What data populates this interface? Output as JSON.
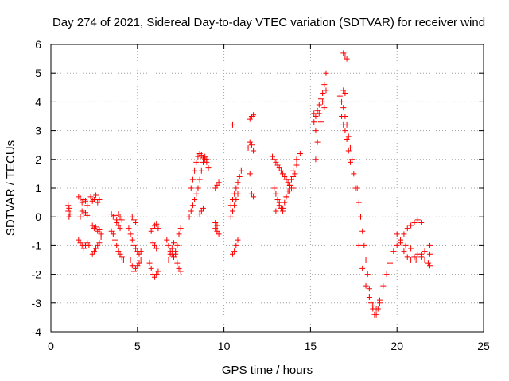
{
  "chart_data": {
    "type": "scatter",
    "title": "Day 274 of 2021, Sidereal Day-to-day VTEC variation (SDTVAR) for receiver wind",
    "xlabel": "GPS time / hours",
    "ylabel": "SDTVAR / TECUs",
    "xlim": [
      0,
      25
    ],
    "ylim": [
      -4,
      6
    ],
    "x_ticks": [
      0,
      5,
      10,
      15,
      20,
      25
    ],
    "y_ticks": [
      -4,
      -3,
      -2,
      -1,
      0,
      1,
      2,
      3,
      4,
      5,
      6
    ],
    "x_tick_labels": [
      "0",
      "5",
      "10",
      "15",
      "20",
      "25"
    ],
    "y_tick_labels": [
      "-4",
      "-3",
      "-2",
      "-1",
      "0",
      "1",
      "2",
      "3",
      "4",
      "5",
      "6"
    ],
    "grid": true,
    "marker": "plus",
    "marker_color": "#ff0000",
    "series": [
      {
        "name": "SDTVAR",
        "x": [
          1.0,
          1.0,
          1.05,
          1.05,
          1.1,
          1.6,
          1.7,
          1.8,
          1.9,
          2.0,
          2.1,
          1.6,
          1.7,
          1.8,
          1.9,
          2.0,
          2.1,
          2.2,
          1.7,
          1.8,
          1.9,
          2.0,
          2.1,
          2.3,
          2.4,
          2.5,
          2.6,
          2.7,
          2.8,
          2.4,
          2.5,
          2.6,
          2.7,
          2.8,
          2.9,
          2.4,
          2.5,
          2.6,
          2.7,
          2.8,
          2.9,
          3.5,
          3.6,
          3.7,
          3.8,
          3.9,
          4.0,
          4.1,
          3.5,
          3.6,
          3.7,
          3.8,
          3.9,
          4.0,
          4.1,
          4.2,
          3.8,
          3.9,
          4.0,
          4.5,
          4.6,
          4.7,
          4.8,
          4.9,
          5.0,
          5.1,
          5.2,
          4.6,
          4.7,
          4.8,
          4.9,
          5.0,
          5.1,
          5.2,
          4.7,
          4.8,
          4.9,
          5.8,
          5.9,
          6.0,
          6.1,
          6.2,
          5.7,
          5.8,
          5.9,
          6.0,
          6.1,
          6.2,
          5.9,
          6.0,
          6.1,
          6.7,
          6.8,
          6.9,
          7.0,
          7.1,
          7.2,
          7.3,
          7.4,
          7.5,
          6.8,
          6.9,
          7.0,
          7.1,
          7.2,
          7.3,
          7.4,
          7.5,
          8.0,
          8.1,
          8.2,
          8.3,
          8.4,
          8.5,
          8.6,
          8.7,
          8.8,
          8.9,
          9.0,
          8.1,
          8.2,
          8.3,
          8.4,
          8.5,
          8.6,
          8.7,
          8.8,
          8.9,
          9.0,
          9.1,
          8.6,
          8.7,
          8.8,
          9.5,
          9.6,
          9.7,
          9.5,
          9.6,
          9.7,
          9.5,
          9.6,
          10.4,
          10.5,
          10.6,
          10.7,
          10.8,
          10.9,
          11.0,
          10.4,
          10.5,
          10.6,
          10.7,
          10.8,
          10.5,
          10.6,
          10.7,
          10.8,
          10.5,
          11.4,
          11.5,
          11.6,
          11.7,
          11.5,
          11.6,
          11.7,
          11.5,
          11.6,
          11.7,
          12.8,
          12.9,
          13.0,
          13.1,
          13.2,
          13.3,
          13.4,
          13.5,
          13.6,
          13.7,
          13.8,
          13.9,
          14.0,
          14.1,
          14.2,
          12.9,
          13.0,
          13.1,
          13.2,
          13.3,
          13.4,
          13.5,
          13.6,
          13.7,
          13.8,
          13.9,
          14.0,
          13.0,
          13.2,
          13.4,
          13.6,
          13.8,
          14.0,
          14.2,
          14.4,
          15.2,
          15.3,
          15.4,
          15.5,
          15.6,
          15.7,
          15.8,
          15.9,
          15.3,
          15.5,
          15.7,
          15.9,
          15.4,
          15.6,
          15.8,
          15.2,
          15.3,
          16.7,
          16.8,
          16.9,
          17.0,
          17.1,
          17.2,
          17.3,
          17.4,
          17.5,
          17.6,
          16.8,
          16.9,
          17.0,
          17.1,
          17.2,
          17.3,
          16.9,
          17.0,
          17.1,
          16.9,
          17.0,
          17.7,
          17.8,
          17.9,
          18.0,
          18.1,
          18.2,
          18.3,
          18.4,
          18.5,
          18.6,
          18.7,
          18.8,
          18.9,
          19.0,
          17.8,
          18.0,
          18.2,
          18.4,
          18.6,
          18.8,
          19.0,
          19.2,
          19.4,
          19.6,
          19.8,
          20.0,
          20.2,
          20.4,
          20.6,
          20.8,
          21.0,
          21.2,
          21.4,
          21.6,
          21.8,
          20.0,
          20.2,
          20.4,
          20.6,
          20.8,
          21.0,
          21.2,
          21.4,
          21.6,
          20.5,
          20.8,
          21.1,
          21.4,
          21.9,
          21.9,
          21.9
        ],
        "y": [
          0.4,
          0.2,
          0.3,
          0.0,
          0.1,
          0.7,
          0.65,
          0.5,
          0.6,
          0.55,
          0.4,
          -0.8,
          -0.9,
          -1.0,
          -1.1,
          -1.0,
          -0.9,
          -1.0,
          0.0,
          0.2,
          0.1,
          0.15,
          0.05,
          0.7,
          0.55,
          0.6,
          0.75,
          0.5,
          0.6,
          -1.3,
          -1.2,
          -1.1,
          -1.0,
          -0.9,
          -0.7,
          -0.3,
          -0.4,
          -0.35,
          -0.5,
          -0.45,
          -0.6,
          0.1,
          0.0,
          0.05,
          -0.1,
          0.1,
          0.0,
          -0.1,
          -0.5,
          -0.6,
          -0.8,
          -1.0,
          -1.2,
          -1.3,
          -1.4,
          -1.5,
          -0.2,
          -0.3,
          -0.4,
          -0.4,
          -0.6,
          -0.8,
          -1.0,
          -1.1,
          -1.2,
          -1.3,
          -1.2,
          -1.5,
          -1.7,
          -1.9,
          -1.8,
          -1.7,
          -1.6,
          -1.5,
          0.0,
          -0.1,
          -0.2,
          -0.5,
          -0.4,
          -0.3,
          -0.25,
          -0.4,
          -1.6,
          -1.8,
          -2.0,
          -2.1,
          -2.0,
          -1.9,
          -0.9,
          -1.0,
          -1.1,
          -0.8,
          -1.0,
          -1.2,
          -1.3,
          -1.4,
          -1.2,
          -1.0,
          -0.6,
          -0.4,
          -1.5,
          -1.3,
          -1.1,
          -0.9,
          -1.3,
          -1.6,
          -1.8,
          -1.9,
          0.0,
          0.2,
          0.4,
          0.6,
          0.8,
          1.0,
          1.3,
          1.6,
          1.9,
          2.1,
          2.0,
          1.0,
          1.3,
          1.6,
          1.9,
          2.1,
          2.2,
          2.15,
          2.05,
          2.0,
          1.9,
          1.7,
          0.1,
          0.2,
          0.3,
          1.0,
          1.1,
          1.2,
          -0.4,
          -0.5,
          -0.6,
          -0.2,
          -0.3,
          0.4,
          0.6,
          0.8,
          1.0,
          1.2,
          1.4,
          1.6,
          0.0,
          0.2,
          0.4,
          0.6,
          0.8,
          -1.3,
          -1.2,
          -1.0,
          -0.8,
          3.2,
          2.4,
          2.6,
          2.5,
          2.3,
          3.4,
          3.5,
          3.55,
          1.5,
          0.8,
          0.7,
          2.1,
          2.0,
          1.9,
          1.8,
          1.7,
          1.6,
          1.5,
          1.4,
          1.3,
          1.2,
          1.1,
          1.0,
          1.0,
          1.5,
          2.0,
          1.0,
          0.8,
          0.6,
          0.4,
          0.3,
          0.2,
          0.5,
          0.7,
          0.9,
          1.1,
          1.3,
          1.6,
          0.2,
          0.5,
          0.3,
          0.7,
          0.9,
          1.4,
          1.8,
          2.2,
          3.3,
          3.5,
          3.7,
          3.9,
          4.1,
          4.3,
          4.6,
          5.0,
          3.0,
          3.6,
          4.0,
          4.4,
          2.6,
          3.3,
          3.8,
          3.6,
          2.0,
          4.2,
          4.0,
          3.8,
          3.5,
          3.2,
          2.8,
          2.4,
          2.0,
          1.5,
          1.0,
          3.5,
          3.2,
          3.0,
          2.7,
          2.3,
          1.9,
          5.7,
          5.6,
          5.5,
          4.4,
          4.3,
          1.0,
          0.5,
          0.0,
          -0.5,
          -1.0,
          -1.5,
          -2.0,
          -2.5,
          -3.0,
          -3.2,
          -3.4,
          -3.4,
          -3.2,
          -3.0,
          -1.0,
          -1.8,
          -2.4,
          -2.8,
          -3.1,
          -3.2,
          -2.9,
          -2.4,
          -2.0,
          -1.6,
          -1.2,
          -0.6,
          -0.9,
          -1.2,
          -1.4,
          -1.5,
          -1.4,
          -1.3,
          -1.4,
          -1.5,
          -1.6,
          -1.0,
          -0.8,
          -0.6,
          -0.4,
          -0.3,
          -0.2,
          -0.1,
          -0.2,
          -1.2,
          -1.0,
          -1.1,
          -1.5,
          -1.3,
          -1.0,
          -1.3,
          -1.7
        ]
      }
    ]
  }
}
